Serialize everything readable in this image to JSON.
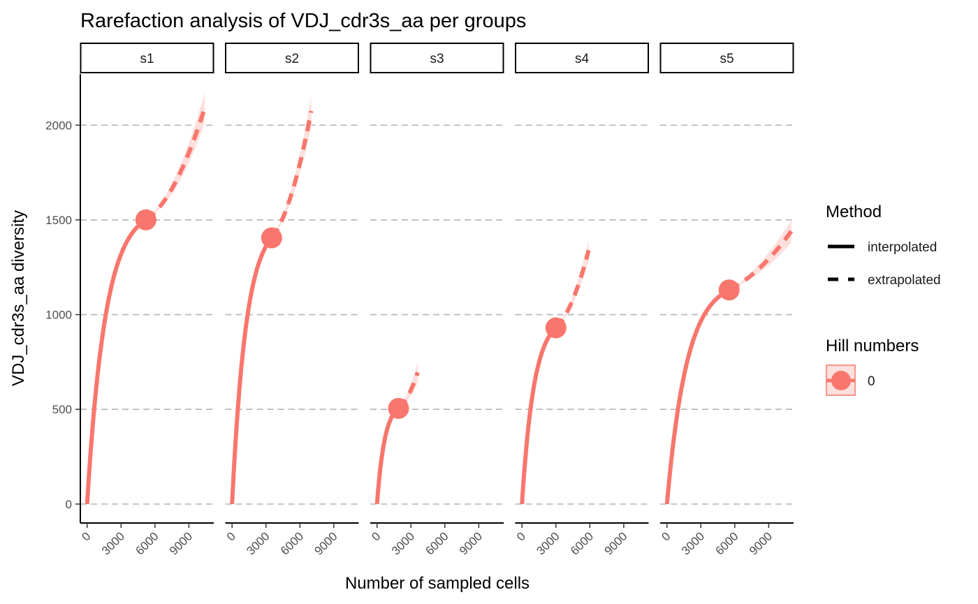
{
  "chart_data": {
    "type": "line",
    "title": "Rarefaction analysis of VDJ_cdr3s_aa per groups",
    "xlabel": "Number of sampled cells",
    "ylabel": "VDJ_cdr3s_aa diversity",
    "xlim": [
      -600,
      11200
    ],
    "ylim": [
      -100,
      2270
    ],
    "x_ticks": [
      0,
      3000,
      6000,
      9000
    ],
    "x_tick_labels": [
      "0",
      "3000",
      "6000",
      "9000"
    ],
    "y_ticks": [
      0,
      500,
      1000,
      1500,
      2000
    ],
    "y_tick_labels": [
      "0",
      "500",
      "1000",
      "1500",
      "2000"
    ],
    "grid": "horizontal dashed",
    "legend_position": "right",
    "colors": {
      "series": "#F8766D",
      "band": "#FDE0DD",
      "grid": "#b3b3b3"
    },
    "facets": [
      {
        "label": "s1",
        "observed": [
          5200,
          1500
        ],
        "interp_end_slope": 0.04,
        "extrap_end": [
          10400,
          2090
        ],
        "band_end": 80
      },
      {
        "label": "s2",
        "observed": [
          3500,
          1405
        ],
        "interp_end_slope": 0.06,
        "extrap_end": [
          7000,
          2075
        ],
        "band_end": 80
      },
      {
        "label": "s3",
        "observed": [
          1900,
          505
        ],
        "interp_end_slope": 0.06,
        "extrap_end": [
          3600,
          695
        ],
        "band_end": 55
      },
      {
        "label": "s4",
        "observed": [
          3000,
          930
        ],
        "interp_end_slope": 0.06,
        "extrap_end": [
          5900,
          1340
        ],
        "band_end": 55
      },
      {
        "label": "s5",
        "observed": [
          5500,
          1130
        ],
        "interp_end_slope": 0.045,
        "extrap_end": [
          11000,
          1440
        ],
        "band_end": 60
      }
    ],
    "legend": {
      "method_title": "Method",
      "method_items": [
        "interpolated",
        "extrapolated"
      ],
      "hill_title": "Hill numbers",
      "hill_items": [
        "0"
      ]
    }
  }
}
